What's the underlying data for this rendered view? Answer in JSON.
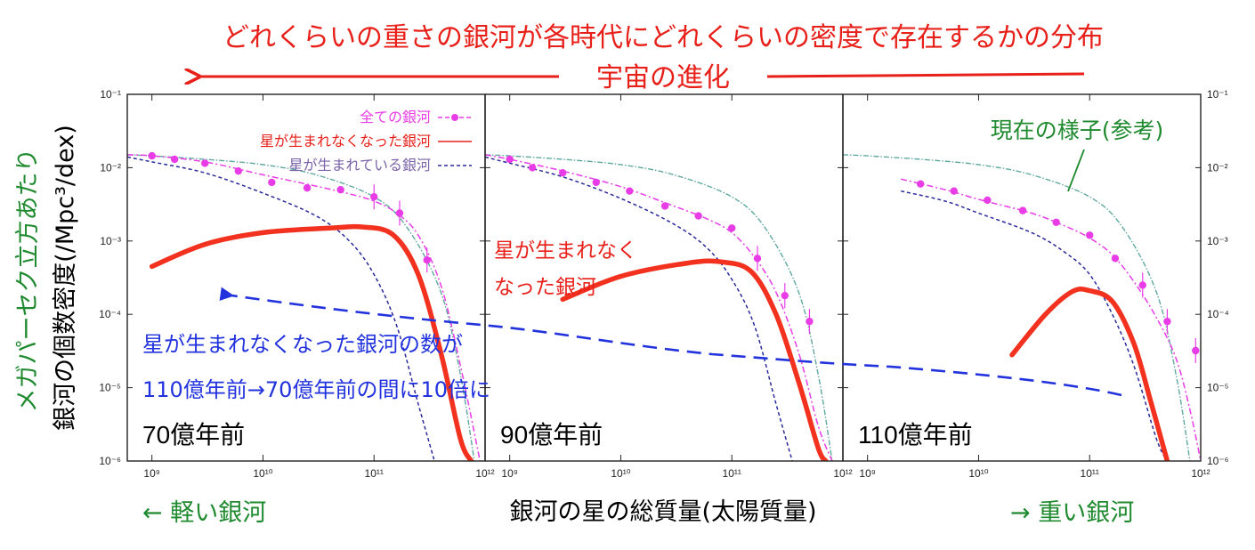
{
  "annotations": {
    "top_title": "どれくらいの重さの銀河が各時代にどれくらいの密度で存在するかの分布",
    "evolution": "宇宙の進化",
    "present_ref": "現在の様子(参考)",
    "quenched_label_line1": "星が生まれなく",
    "quenched_label_line2": "なった銀河",
    "blue_note_line1": "星が生まれなくなった銀河の数が",
    "blue_note_line2": "110億年前→70億年前の間に10倍に",
    "light": "← 軽い銀河",
    "heavy": "→ 重い銀河",
    "ylabel_green": "メガパーセク立方あたり",
    "ylabel_black": "銀河の個数密度(/Mpc³/dex)"
  },
  "colors": {
    "red_text": "#e8201a",
    "red_curve": "#f2311f",
    "magenta": "#e83de6",
    "blue_note": "#2233dd",
    "green_hand": "#1f8a2f",
    "teal_curve": "#5fa8a0",
    "navy_dash": "#2a2a9a",
    "frame": "#222222"
  },
  "chart_data": {
    "type": "line",
    "title": "どれくらいの重さの銀河が各時代にどれくらいの密度で存在するかの分布",
    "xlabel": "銀河の星の総質量(太陽質量)",
    "ylabel": "銀河の個数密度(/Mpc³/dex)",
    "xscale": "log",
    "yscale": "log",
    "xlim": [
      600000000.0,
      1000000000000.0
    ],
    "ylim": [
      1e-06,
      0.1
    ],
    "x_ticks": [
      "10⁹",
      "10¹⁰",
      "10¹¹",
      "10¹²"
    ],
    "y_ticks": [
      "10⁻⁶",
      "10⁻⁵",
      "10⁻⁴",
      "10⁻³",
      "10⁻²",
      "10⁻¹"
    ],
    "legend": {
      "placement": "top-right of first panel",
      "entries": [
        {
          "label": "全ての銀河",
          "color": "#e83de6",
          "style": "dashed-dots"
        },
        {
          "label": "星が生まれなくなった銀河",
          "color": "#e8201a",
          "style": "solid"
        },
        {
          "label": "星が生まれている銀河",
          "color": "#2a2a9a",
          "style": "dashed"
        }
      ]
    },
    "panels": [
      {
        "label": "70億年前",
        "all_points": [
          [
            1000000000.0,
            0.0145
          ],
          [
            1600000000.0,
            0.013
          ],
          [
            3000000000.0,
            0.0115
          ],
          [
            6000000000.0,
            0.009
          ],
          [
            12000000000.0,
            0.0063
          ],
          [
            25000000000.0,
            0.0053
          ],
          [
            50000000000.0,
            0.005
          ],
          [
            100000000000.0,
            0.004
          ],
          [
            170000000000.0,
            0.0024
          ],
          [
            300000000000.0,
            0.00055
          ]
        ],
        "all_fit": [
          [
            600000000.0,
            0.015
          ],
          [
            1000000000.0,
            0.0145
          ],
          [
            3000000000.0,
            0.012
          ],
          [
            10000000000.0,
            0.008
          ],
          [
            30000000000.0,
            0.0056
          ],
          [
            60000000000.0,
            0.0044
          ],
          [
            100000000000.0,
            0.0035
          ],
          [
            160000000000.0,
            0.0024
          ],
          [
            250000000000.0,
            0.0012
          ],
          [
            400000000000.0,
            0.00025
          ],
          [
            600000000000.0,
            2e-05
          ],
          [
            900000000000.0,
            1e-06
          ]
        ],
        "star_forming": [
          [
            600000000.0,
            0.014
          ],
          [
            1000000000.0,
            0.012
          ],
          [
            3000000000.0,
            0.0085
          ],
          [
            10000000000.0,
            0.0045
          ],
          [
            30000000000.0,
            0.0022
          ],
          [
            60000000000.0,
            0.001
          ],
          [
            100000000000.0,
            0.00035
          ],
          [
            160000000000.0,
            7e-05
          ],
          [
            250000000000.0,
            6e-06
          ],
          [
            350000000000.0,
            1e-06
          ]
        ],
        "quenched": [
          [
            1000000000.0,
            0.00045
          ],
          [
            3000000000.0,
            0.0009
          ],
          [
            10000000000.0,
            0.0013
          ],
          [
            40000000000.0,
            0.0015
          ],
          [
            80000000000.0,
            0.00155
          ],
          [
            150000000000.0,
            0.0012
          ],
          [
            250000000000.0,
            0.00035
          ],
          [
            400000000000.0,
            3e-05
          ],
          [
            600000000000.0,
            2e-06
          ],
          [
            750000000000.0,
            1e-06
          ]
        ],
        "present": [
          [
            600000000.0,
            0.015
          ],
          [
            1000000000.0,
            0.0145
          ],
          [
            3000000000.0,
            0.013
          ],
          [
            10000000000.0,
            0.011
          ],
          [
            30000000000.0,
            0.008
          ],
          [
            100000000000.0,
            0.004
          ],
          [
            200000000000.0,
            0.0015
          ],
          [
            400000000000.0,
            0.0002
          ],
          [
            600000000000.0,
            1.5e-05
          ],
          [
            800000000000.0,
            1e-06
          ]
        ]
      },
      {
        "label": "90億年前",
        "all_points": [
          [
            1000000000.0,
            0.013
          ],
          [
            1600000000.0,
            0.01
          ],
          [
            3000000000.0,
            0.0085
          ],
          [
            6000000000.0,
            0.0063
          ],
          [
            12000000000.0,
            0.0048
          ],
          [
            25000000000.0,
            0.003
          ],
          [
            50000000000.0,
            0.0022
          ],
          [
            100000000000.0,
            0.0015
          ],
          [
            170000000000.0,
            0.00058
          ],
          [
            300000000000.0,
            0.00018
          ],
          [
            500000000000.0,
            8e-05
          ]
        ],
        "all_fit": [
          [
            600000000.0,
            0.015
          ],
          [
            1000000000.0,
            0.013
          ],
          [
            3000000000.0,
            0.009
          ],
          [
            10000000000.0,
            0.0055
          ],
          [
            30000000000.0,
            0.003
          ],
          [
            60000000000.0,
            0.002
          ],
          [
            100000000000.0,
            0.0013
          ],
          [
            160000000000.0,
            0.0006
          ],
          [
            250000000000.0,
            0.0002
          ],
          [
            400000000000.0,
            3e-05
          ],
          [
            600000000000.0,
            3e-06
          ],
          [
            800000000000.0,
            1e-06
          ]
        ],
        "star_forming": [
          [
            600000000.0,
            0.014
          ],
          [
            1000000000.0,
            0.0115
          ],
          [
            3000000000.0,
            0.0075
          ],
          [
            10000000000.0,
            0.0038
          ],
          [
            30000000000.0,
            0.0017
          ],
          [
            60000000000.0,
            0.0008
          ],
          [
            100000000000.0,
            0.0003
          ],
          [
            160000000000.0,
            7e-05
          ],
          [
            250000000000.0,
            6e-06
          ],
          [
            350000000000.0,
            1e-06
          ]
        ],
        "quenched": [
          [
            3000000000.0,
            0.00016
          ],
          [
            10000000000.0,
            0.00033
          ],
          [
            40000000000.0,
            0.0005
          ],
          [
            80000000000.0,
            0.00052
          ],
          [
            150000000000.0,
            0.00038
          ],
          [
            250000000000.0,
            0.0001
          ],
          [
            400000000000.0,
            1.2e-05
          ],
          [
            600000000000.0,
            1.5e-06
          ],
          [
            700000000000.0,
            1e-06
          ]
        ],
        "present": [
          [
            600000000.0,
            0.015
          ],
          [
            1000000000.0,
            0.0145
          ],
          [
            3000000000.0,
            0.013
          ],
          [
            10000000000.0,
            0.011
          ],
          [
            30000000000.0,
            0.008
          ],
          [
            100000000000.0,
            0.004
          ],
          [
            200000000000.0,
            0.0015
          ],
          [
            400000000000.0,
            0.0002
          ],
          [
            600000000000.0,
            1.5e-05
          ],
          [
            800000000000.0,
            1e-06
          ]
        ]
      },
      {
        "label": "110億年前",
        "all_points": [
          [
            3000000000.0,
            0.006
          ],
          [
            6000000000.0,
            0.0048
          ],
          [
            12000000000.0,
            0.0036
          ],
          [
            25000000000.0,
            0.0026
          ],
          [
            50000000000.0,
            0.0018
          ],
          [
            100000000000.0,
            0.0012
          ],
          [
            170000000000.0,
            0.00058
          ],
          [
            300000000000.0,
            0.00025
          ],
          [
            500000000000.0,
            8e-05
          ],
          [
            900000000000.0,
            3.2e-05
          ]
        ],
        "all_fit": [
          [
            2000000000.0,
            0.007
          ],
          [
            5000000000.0,
            0.005
          ],
          [
            10000000000.0,
            0.0037
          ],
          [
            30000000000.0,
            0.0024
          ],
          [
            60000000000.0,
            0.0016
          ],
          [
            100000000000.0,
            0.0011
          ],
          [
            160000000000.0,
            0.00065
          ],
          [
            250000000000.0,
            0.00028
          ],
          [
            400000000000.0,
            9e-05
          ],
          [
            600000000000.0,
            2.5e-05
          ],
          [
            800000000000.0,
            5e-06
          ],
          [
            1000000000000.0,
            1e-06
          ]
        ],
        "star_forming": [
          [
            2000000000.0,
            0.0048
          ],
          [
            5000000000.0,
            0.0035
          ],
          [
            10000000000.0,
            0.0024
          ],
          [
            30000000000.0,
            0.0013
          ],
          [
            60000000000.0,
            0.0007
          ],
          [
            100000000000.0,
            0.00035
          ],
          [
            160000000000.0,
            0.0001
          ],
          [
            250000000000.0,
            2e-05
          ],
          [
            400000000000.0,
            2e-06
          ],
          [
            500000000000.0,
            1e-06
          ]
        ],
        "quenched": [
          [
            20000000000.0,
            2.8e-05
          ],
          [
            40000000000.0,
            0.0001
          ],
          [
            70000000000.0,
            0.000205
          ],
          [
            100000000000.0,
            0.00021
          ],
          [
            160000000000.0,
            0.00015
          ],
          [
            250000000000.0,
            4e-05
          ],
          [
            350000000000.0,
            7e-06
          ],
          [
            500000000000.0,
            1e-06
          ]
        ],
        "present": [
          [
            600000000.0,
            0.015
          ],
          [
            1000000000.0,
            0.0145
          ],
          [
            3000000000.0,
            0.013
          ],
          [
            10000000000.0,
            0.011
          ],
          [
            30000000000.0,
            0.008
          ],
          [
            100000000000.0,
            0.004
          ],
          [
            200000000000.0,
            0.0015
          ],
          [
            400000000000.0,
            0.0002
          ],
          [
            600000000000.0,
            1.5e-05
          ],
          [
            800000000000.0,
            1e-06
          ]
        ]
      }
    ]
  }
}
